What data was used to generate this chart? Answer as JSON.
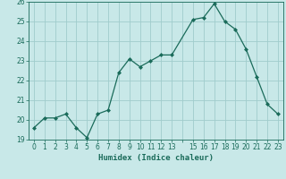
{
  "x": [
    0,
    1,
    2,
    3,
    4,
    5,
    6,
    7,
    8,
    9,
    10,
    11,
    12,
    13,
    15,
    16,
    17,
    18,
    19,
    20,
    21,
    22,
    23
  ],
  "y": [
    19.6,
    20.1,
    20.1,
    20.3,
    19.6,
    19.1,
    20.3,
    20.5,
    22.4,
    23.1,
    22.7,
    23.0,
    23.3,
    23.3,
    25.1,
    25.2,
    25.9,
    25.0,
    24.6,
    23.6,
    22.2,
    20.8,
    20.3
  ],
  "line_color": "#1a6b5a",
  "bg_color": "#c8e8e8",
  "grid_color": "#a0cccc",
  "xlabel": "Humidex (Indice chaleur)",
  "ylim": [
    19,
    26
  ],
  "xlim": [
    -0.5,
    23.5
  ],
  "yticks": [
    19,
    20,
    21,
    22,
    23,
    24,
    25,
    26
  ],
  "xtick_positions": [
    0,
    1,
    2,
    3,
    4,
    5,
    6,
    7,
    8,
    9,
    10,
    11,
    12,
    13,
    14,
    15,
    16,
    17,
    18,
    19,
    20,
    21,
    22,
    23
  ],
  "xtick_labels": [
    "0",
    "1",
    "2",
    "3",
    "4",
    "5",
    "6",
    "7",
    "8",
    "9",
    "10",
    "11",
    "12",
    "13",
    "",
    "15",
    "16",
    "17",
    "18",
    "19",
    "20",
    "21",
    "22",
    "23"
  ],
  "label_fontsize": 6.5,
  "tick_fontsize": 5.5
}
